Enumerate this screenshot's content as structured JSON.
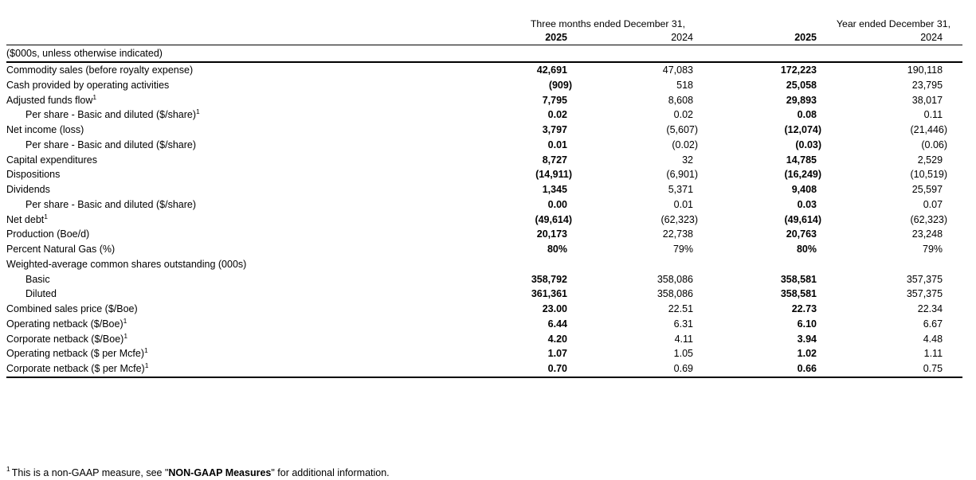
{
  "table": {
    "group_headers": {
      "three_months": "Three months ended December 31,",
      "year": "Year ended December 31,"
    },
    "column_years": [
      "2025",
      "2024",
      "2025",
      "2024"
    ],
    "unit_note": "($000s, unless otherwise indicated)",
    "rows": [
      {
        "label": "Commodity sales (before royalty expense)",
        "indent": false,
        "values": [
          "42,691",
          "47,083",
          "172,223",
          "190,118"
        ]
      },
      {
        "label": "Cash provided by operating activities",
        "indent": false,
        "values": [
          "(909)",
          "518",
          "25,058",
          "23,795"
        ]
      },
      {
        "label": "Adjusted funds flow",
        "sup": "1",
        "indent": false,
        "values": [
          "7,795",
          "8,608",
          "29,893",
          "38,017"
        ]
      },
      {
        "label": "Per share - Basic and diluted ($/share)",
        "sup": "1",
        "indent": true,
        "values": [
          "0.02",
          "0.02",
          "0.08",
          "0.11"
        ]
      },
      {
        "label": "Net income (loss)",
        "indent": false,
        "values": [
          "3,797",
          "(5,607)",
          "(12,074)",
          "(21,446)"
        ]
      },
      {
        "label": "Per share - Basic and diluted ($/share)",
        "indent": true,
        "values": [
          "0.01",
          "(0.02)",
          "(0.03)",
          "(0.06)"
        ]
      },
      {
        "label": "Capital expenditures",
        "indent": false,
        "values": [
          "8,727",
          "32",
          "14,785",
          "2,529"
        ]
      },
      {
        "label": "Dispositions",
        "indent": false,
        "values": [
          "(14,911)",
          "(6,901)",
          "(16,249)",
          "(10,519)"
        ]
      },
      {
        "label": "Dividends",
        "indent": false,
        "values": [
          "1,345",
          "5,371",
          "9,408",
          "25,597"
        ]
      },
      {
        "label": "Per share - Basic and diluted ($/share)",
        "indent": true,
        "values": [
          "0.00",
          "0.01",
          "0.03",
          "0.07"
        ]
      },
      {
        "label": "Net debt",
        "sup": "1",
        "indent": false,
        "values": [
          "(49,614)",
          "(62,323)",
          "(49,614)",
          "(62,323)"
        ]
      },
      {
        "label": "Production (Boe/d)",
        "indent": false,
        "values": [
          "20,173",
          "22,738",
          "20,763",
          "23,248"
        ]
      },
      {
        "label": "Percent Natural Gas (%)",
        "indent": false,
        "values": [
          "80%",
          "79%",
          "80%",
          "79%"
        ]
      },
      {
        "label": "Weighted-average common shares outstanding (000s)",
        "indent": false,
        "values": [
          "",
          "",
          "",
          ""
        ]
      },
      {
        "label": "Basic",
        "indent": true,
        "values": [
          "358,792",
          "358,086",
          "358,581",
          "357,375"
        ]
      },
      {
        "label": "Diluted",
        "indent": true,
        "values": [
          "361,361",
          "358,086",
          "358,581",
          "357,375"
        ]
      },
      {
        "label": "Combined sales price ($/Boe)",
        "indent": false,
        "values": [
          "23.00",
          "22.51",
          "22.73",
          "22.34"
        ]
      },
      {
        "label": "Operating netback ($/Boe)",
        "sup": "1",
        "indent": false,
        "values": [
          "6.44",
          "6.31",
          "6.10",
          "6.67"
        ]
      },
      {
        "label": "Corporate netback ($/Boe)",
        "sup": "1",
        "indent": false,
        "values": [
          "4.20",
          "4.11",
          "3.94",
          "4.48"
        ]
      },
      {
        "label": "Operating netback ($ per Mcfe)",
        "sup": "1",
        "indent": false,
        "values": [
          "1.07",
          "1.05",
          "1.02",
          "1.11"
        ]
      },
      {
        "label": "Corporate netback ($ per Mcfe)",
        "sup": "1",
        "indent": false,
        "values": [
          "0.70",
          "0.69",
          "0.66",
          "0.75"
        ]
      }
    ]
  },
  "footnote": {
    "marker": "1",
    "before": "This is a non-GAAP measure, see \"",
    "emphasis": "NON-GAAP Measures",
    "after": "\" for additional information."
  }
}
